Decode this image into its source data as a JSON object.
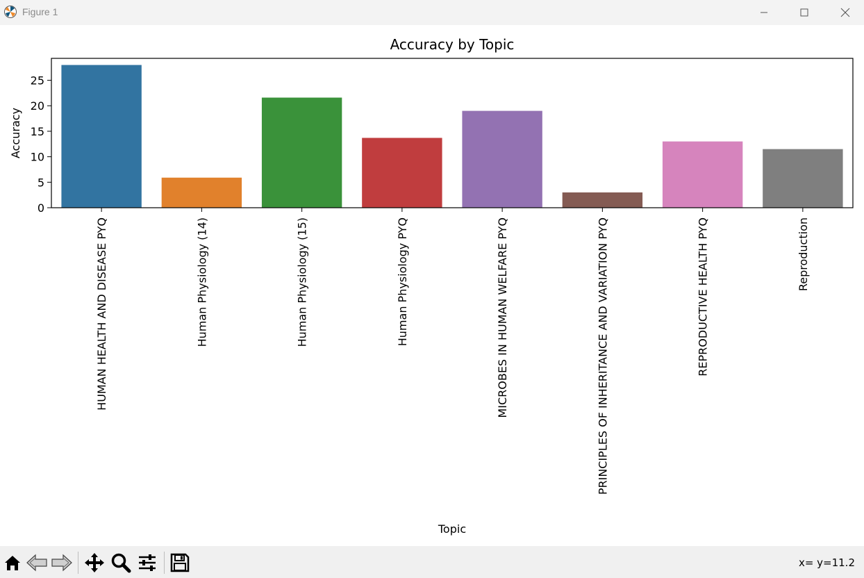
{
  "window": {
    "title": "Figure 1"
  },
  "window_controls": [
    "minimize",
    "maximize",
    "close"
  ],
  "toolbar": {
    "buttons": [
      "home-icon",
      "back-icon",
      "forward-icon",
      "pan-icon",
      "zoom-icon",
      "configure-subplots-icon",
      "save-icon"
    ],
    "coords": "x= y=11.2"
  },
  "chart_data": {
    "type": "bar",
    "title": "Accuracy by Topic",
    "xlabel": "Topic",
    "ylabel": "Accuracy",
    "ylim": [
      0,
      29.3
    ],
    "yticks": [
      0,
      5,
      10,
      15,
      20,
      25
    ],
    "grid": false,
    "legend": "none",
    "categories": [
      "HUMAN HEALTH AND DISEASE PYQ",
      "Human Physiology (14)",
      "Human Physiology (15)",
      "Human Physiology PYQ",
      "MICROBES IN HUMAN WELFARE  PYQ",
      "PRINCIPLES OF INHERITANCE AND VARIATION PYQ",
      "REPRODUCTIVE HEALTH PYQ",
      "Reproduction"
    ],
    "values": [
      28.0,
      5.9,
      21.6,
      13.7,
      19.0,
      3.0,
      13.0,
      11.5
    ],
    "colors": [
      "#3274a1",
      "#e1812c",
      "#3a923a",
      "#c03d3e",
      "#9372b2",
      "#845b53",
      "#d684bd",
      "#7f7f7f"
    ]
  }
}
